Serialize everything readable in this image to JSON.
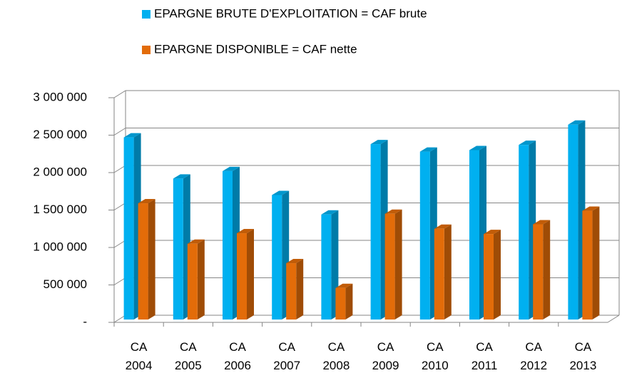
{
  "chart_data": {
    "type": "bar3d",
    "categories": [
      "CA 2004",
      "CA 2005",
      "CA 2006",
      "CA 2007",
      "CA 2008",
      "CA 2009",
      "CA 2010",
      "CA 2011",
      "CA 2012",
      "CA 2013"
    ],
    "series": [
      {
        "name": "EPARGNE BRUTE D'EXPLOITATION = CAF brute",
        "color": "#00b0f0",
        "values": [
          2470000,
          1920000,
          2020000,
          1700000,
          1440000,
          2380000,
          2280000,
          2300000,
          2370000,
          2640000
        ]
      },
      {
        "name": "EPARGNE DISPONIBLE = CAF nette",
        "color": "#e36c09",
        "values": [
          1590000,
          1050000,
          1190000,
          790000,
          460000,
          1450000,
          1250000,
          1180000,
          1310000,
          1490000
        ]
      }
    ],
    "ylim": [
      0,
      3000000
    ],
    "yticks": [
      {
        "value": 0,
        "label": "-"
      },
      {
        "value": 500000,
        "label": "500 000"
      },
      {
        "value": 1000000,
        "label": "1 000 000"
      },
      {
        "value": 1500000,
        "label": "1 500 000"
      },
      {
        "value": 2000000,
        "label": "2 000 000"
      },
      {
        "value": 2500000,
        "label": "2 500 000"
      },
      {
        "value": 3000000,
        "label": "3 000 000"
      }
    ],
    "grid": true,
    "legend": "top"
  }
}
